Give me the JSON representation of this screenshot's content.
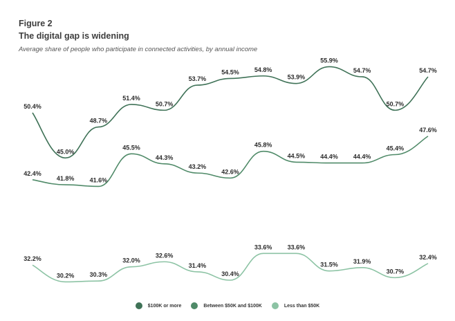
{
  "figure_label": "Figure 2",
  "chart_data": {
    "type": "line",
    "title": "The digital gap is widening",
    "subtitle": "Average share of people who participate in connected activities, by annual income",
    "xlabel": "",
    "ylabel": "",
    "x": [
      1,
      2,
      3,
      4,
      5,
      6,
      7,
      8,
      9,
      10,
      11,
      12,
      13
    ],
    "ylim": [
      29,
      57
    ],
    "grid": false,
    "legend_position": "bottom-center",
    "series": [
      {
        "name": "$100K or more",
        "color": "#3f7257",
        "values": [
          50.4,
          45.0,
          48.7,
          51.4,
          50.7,
          53.7,
          54.5,
          54.8,
          53.9,
          55.9,
          54.7,
          50.7,
          54.7
        ],
        "labels": [
          "50.4%",
          "45.0%",
          "48.7%",
          "51.4%",
          "50.7%",
          "53.7%",
          "54.5%",
          "54.8%",
          "53.9%",
          "55.9%",
          "54.7%",
          "50.7%",
          "54.7%"
        ]
      },
      {
        "name": "Between $50K and $100K",
        "color": "#4f8a68",
        "values": [
          42.4,
          41.8,
          41.6,
          45.5,
          44.3,
          43.2,
          42.6,
          45.8,
          44.5,
          44.4,
          44.4,
          45.4,
          47.6
        ],
        "labels": [
          "42.4%",
          "41.8%",
          "41.6%",
          "45.5%",
          "44.3%",
          "43.2%",
          "42.6%",
          "45.8%",
          "44.5%",
          "44.4%",
          "44.4%",
          "45.4%",
          "47.6%"
        ]
      },
      {
        "name": "Less than $50K",
        "color": "#8cc3a4",
        "values": [
          32.2,
          30.2,
          30.3,
          32.0,
          32.6,
          31.4,
          30.4,
          33.6,
          33.6,
          31.5,
          31.9,
          30.7,
          32.4
        ],
        "labels": [
          "32.2%",
          "30.2%",
          "30.3%",
          "32.0%",
          "32.6%",
          "31.4%",
          "30.4%",
          "33.6%",
          "33.6%",
          "31.5%",
          "31.9%",
          "30.7%",
          "32.4%"
        ]
      }
    ]
  },
  "legend": [
    {
      "label": "$100K or more",
      "color": "#3f7257"
    },
    {
      "label": "Between $50K and $100K",
      "color": "#4f8a68"
    },
    {
      "label": "Less than $50K",
      "color": "#8cc3a4"
    }
  ]
}
